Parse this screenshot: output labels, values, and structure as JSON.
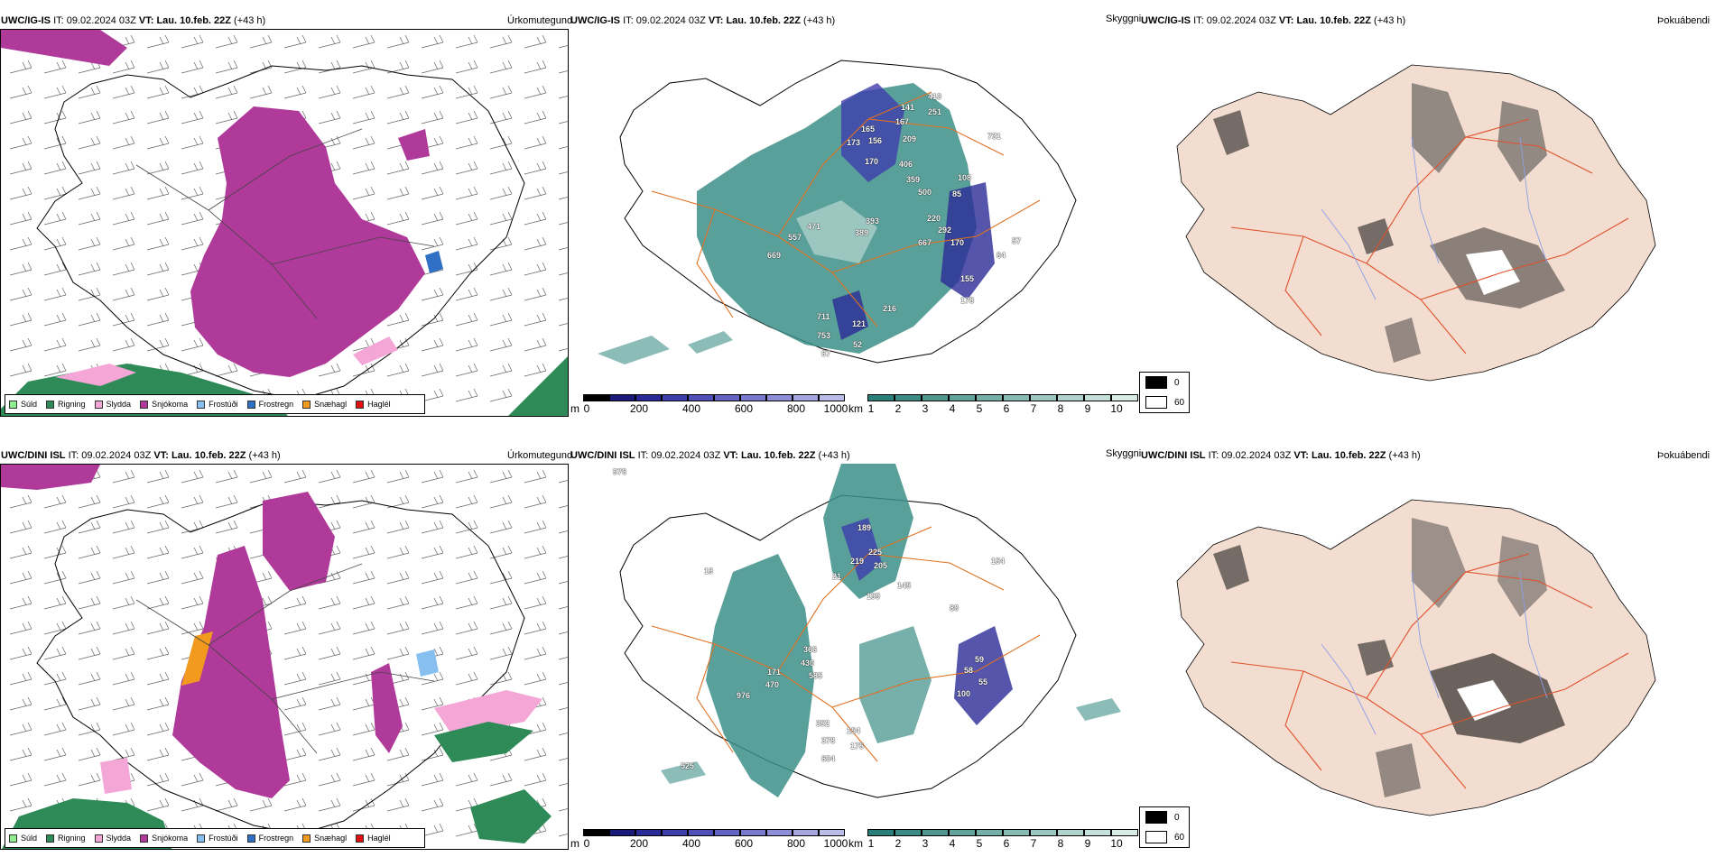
{
  "rows": [
    {
      "model": "UWC/IG-IS",
      "it_label": "IT:",
      "it_value": "09.02.2024 03Z",
      "vt_label": "VT:",
      "vt_value": "Lau. 10.feb. 22Z",
      "lead": "(+43 h)",
      "labels": [
        "410",
        "251",
        "141",
        "165",
        "167",
        "173",
        "156",
        "209",
        "170",
        "406",
        "359",
        "500",
        "85",
        "108",
        "393",
        "389",
        "220",
        "292",
        "471",
        "557",
        "667",
        "170",
        "669",
        "155",
        "178",
        "57",
        "64",
        "711",
        "121",
        "753",
        "52",
        "67",
        "731",
        "216"
      ]
    },
    {
      "model": "UWC/DINI ISL",
      "it_label": "IT:",
      "it_value": "09.02.2024 03Z",
      "vt_label": "VT:",
      "vt_value": "Lau. 10.feb. 22Z",
      "lead": "(+43 h)",
      "labels": [
        "976",
        "189",
        "225",
        "219",
        "205",
        "145",
        "199",
        "154",
        "80",
        "366",
        "430",
        "58",
        "59",
        "171",
        "585",
        "470",
        "976",
        "55",
        "100",
        "352",
        "378",
        "154",
        "175",
        "604",
        "525",
        "19",
        "21"
      ]
    }
  ],
  "panel_titles": {
    "precip": "Úrkomutegund",
    "cloud": "Skyggni",
    "fog": "Þokuábendi"
  },
  "precip_legend": [
    {
      "label": "Súld",
      "color": "#90ee90"
    },
    {
      "label": "Rigning",
      "color": "#2e8b57"
    },
    {
      "label": "Slydda",
      "color": "#f4a6d7"
    },
    {
      "label": "Snjókoma",
      "color": "#b03a9a"
    },
    {
      "label": "Frostúði",
      "color": "#87bff0"
    },
    {
      "label": "Frostregn",
      "color": "#2f6fc4"
    },
    {
      "label": "Snæhagl",
      "color": "#f29a1d"
    },
    {
      "label": "Haglél",
      "color": "#e01010"
    }
  ],
  "colorbar_m": {
    "unit": "m",
    "ticks": [
      "0",
      "200",
      "400",
      "600",
      "800",
      "1000"
    ],
    "colors": [
      "#000000",
      "#1a1a7a",
      "#2a2a96",
      "#3d3dab",
      "#5050b8",
      "#6464c2",
      "#7878cc",
      "#8e8ed6",
      "#a5a5df",
      "#bcbce8"
    ]
  },
  "colorbar_km": {
    "unit": "km",
    "ticks": [
      "1",
      "2",
      "3",
      "4",
      "5",
      "6",
      "7",
      "8",
      "9",
      "10"
    ],
    "colors": [
      "#2a7f78",
      "#3c8b84",
      "#4f978f",
      "#62a39b",
      "#75afa7",
      "#88bbb3",
      "#9cc7c0",
      "#b0d3cd",
      "#c5e0da",
      "#daece8"
    ]
  },
  "fog_legend": [
    {
      "label": "0",
      "color": "#000000"
    },
    {
      "label": "60",
      "color": "#ffffff"
    }
  ],
  "colors": {
    "snow": "#b03a9a",
    "rain": "#2e8b57",
    "sleet": "#f4a6d7",
    "teal": "#3d8f88",
    "orange_roads": "#e07020",
    "fog_land": "#f3ddd0",
    "fog_roads": "#e0502a",
    "fog_rivers": "#8aa0e8"
  }
}
